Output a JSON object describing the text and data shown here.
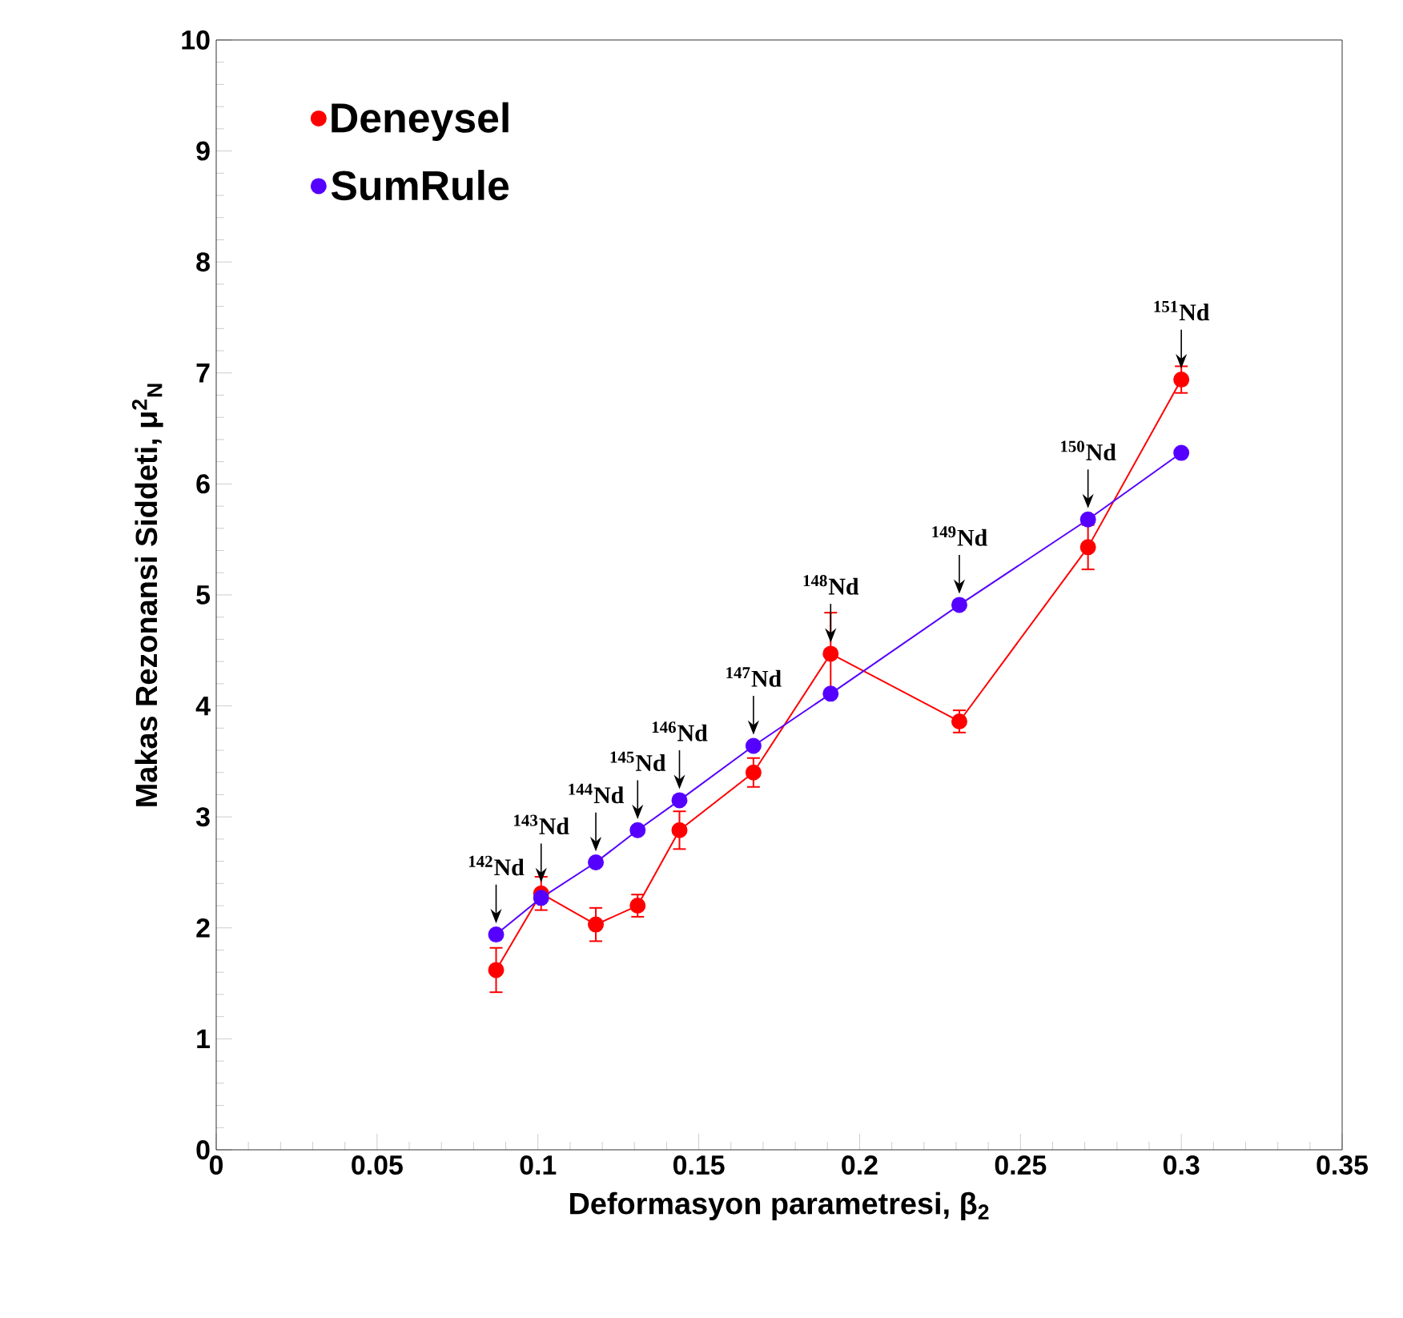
{
  "chart_data": {
    "type": "line",
    "xlabel": "Deformasyon parametresi, β$_{2}$",
    "ylabel": "Makas Rezonansi Siddeti, μ$^{2}$$_{N}$",
    "x": [
      0.087,
      0.101,
      0.118,
      0.131,
      0.144,
      0.167,
      0.191,
      0.231,
      0.271,
      0.3
    ],
    "series": [
      {
        "name": "Deneysel",
        "color": "#ff0000",
        "values": [
          1.62,
          2.31,
          2.03,
          2.2,
          2.88,
          3.4,
          4.47,
          3.86,
          5.43,
          6.94
        ],
        "errors": [
          0.2,
          0.15,
          0.15,
          0.1,
          0.17,
          0.13,
          0.37,
          0.1,
          0.2,
          0.12
        ]
      },
      {
        "name": "SumRule",
        "color": "#5500ff",
        "values": [
          1.94,
          2.27,
          2.59,
          2.88,
          3.15,
          3.64,
          4.11,
          4.91,
          5.68,
          6.28
        ]
      }
    ],
    "xlim": [
      0,
      0.35
    ],
    "ylim": [
      0,
      10
    ],
    "xticks": [
      0,
      0.05,
      0.1,
      0.15,
      0.2,
      0.25,
      0.3,
      0.35
    ],
    "yticks": [
      0,
      1,
      2,
      3,
      4,
      5,
      6,
      7,
      8,
      9,
      10
    ],
    "legend": "top left",
    "marker": "circle",
    "line_style": "solid",
    "annotations": [
      {
        "text": "$^{142}$Nd",
        "x": 0.087,
        "y": 1.94
      },
      {
        "text": "$^{143}$Nd",
        "x": 0.101,
        "y": 2.31
      },
      {
        "text": "$^{144}$Nd",
        "x": 0.118,
        "y": 2.59
      },
      {
        "text": "$^{145}$Nd",
        "x": 0.131,
        "y": 2.88
      },
      {
        "text": "$^{146}$Nd",
        "x": 0.144,
        "y": 3.15
      },
      {
        "text": "$^{147}$Nd",
        "x": 0.167,
        "y": 3.64
      },
      {
        "text": "$^{148}$Nd",
        "x": 0.191,
        "y": 4.47
      },
      {
        "text": "$^{149}$Nd",
        "x": 0.231,
        "y": 4.91
      },
      {
        "text": "$^{150}$Nd",
        "x": 0.271,
        "y": 5.68
      },
      {
        "text": "$^{151}$Nd",
        "x": 0.3,
        "y": 6.94
      }
    ]
  }
}
